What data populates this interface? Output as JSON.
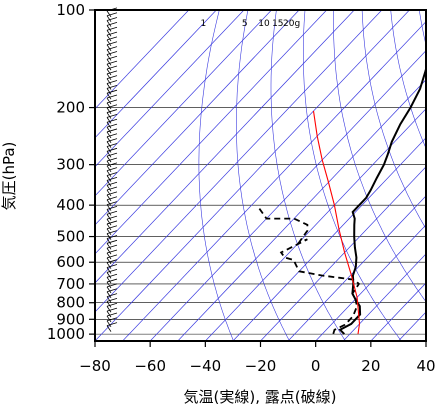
{
  "chart_data": {
    "type": "line",
    "title": "",
    "xlabel": "気温(実線), 露点(破線)",
    "ylabel": "気圧(hPa)",
    "xlim": [
      -80,
      40
    ],
    "ylim": [
      100,
      1050
    ],
    "y_scale": "log",
    "grid": true,
    "x_ticks": [
      -80,
      -60,
      -40,
      -20,
      0,
      20,
      40
    ],
    "x_tick_labels": [
      "−80",
      "−60",
      "−40",
      "−20",
      "0",
      "20",
      "40"
    ],
    "y_ticks": [
      100,
      200,
      300,
      400,
      500,
      600,
      700,
      800,
      900,
      1000
    ],
    "y_tick_labels": [
      "100",
      "200",
      "300",
      "400",
      "500",
      "600",
      "700",
      "800",
      "900",
      "1000"
    ],
    "mixing_ratio_labels": [
      "1",
      "5",
      "10",
      "15",
      "20g"
    ],
    "series": [
      {
        "role": "temperature",
        "style": "solid",
        "color": "#000000",
        "points": [
          [
            -57.5,
            100
          ],
          [
            -55.8,
            103
          ],
          [
            -54,
            108
          ],
          [
            -54.5,
            120
          ],
          [
            -56,
            123
          ],
          [
            -57,
            130
          ],
          [
            -56.5,
            140
          ],
          [
            -53,
            155
          ],
          [
            -49,
            175
          ],
          [
            -46,
            200
          ],
          [
            -44,
            225
          ],
          [
            -41,
            255
          ],
          [
            -38,
            280
          ],
          [
            -36,
            300
          ],
          [
            -34,
            330
          ],
          [
            -32,
            360
          ],
          [
            -31,
            380
          ],
          [
            -31,
            420
          ],
          [
            -28,
            440
          ],
          [
            -26,
            460
          ],
          [
            -22,
            500
          ],
          [
            -18,
            540
          ],
          [
            -14,
            580
          ],
          [
            -11,
            620
          ],
          [
            -9,
            660
          ],
          [
            -6,
            700
          ],
          [
            -3,
            750
          ],
          [
            0,
            780
          ],
          [
            4,
            820
          ],
          [
            7,
            870
          ],
          [
            7,
            930
          ],
          [
            5,
            970
          ],
          [
            8,
            1000
          ]
        ]
      },
      {
        "role": "dewpoint",
        "style": "dashed",
        "color": "#000000",
        "points": [
          [
            -66,
            410
          ],
          [
            -60,
            440
          ],
          [
            -50,
            440
          ],
          [
            -43,
            460
          ],
          [
            -41,
            480
          ],
          [
            -40,
            520
          ],
          [
            -38,
            510
          ],
          [
            -43,
            560
          ],
          [
            -40,
            580
          ],
          [
            -36,
            590
          ],
          [
            -30,
            640
          ],
          [
            -20,
            660
          ],
          [
            -13,
            670
          ],
          [
            -7,
            680
          ],
          [
            -4,
            700
          ],
          [
            -3,
            750
          ],
          [
            0,
            780
          ],
          [
            3,
            820
          ],
          [
            5,
            880
          ],
          [
            5,
            935
          ],
          [
            3,
            970
          ],
          [
            4,
            1000
          ]
        ]
      },
      {
        "role": "parcel",
        "style": "solid",
        "color": "#ff0000",
        "points": [
          [
            -80,
            205
          ],
          [
            -70,
            245
          ],
          [
            -60,
            290
          ],
          [
            -50,
            340
          ],
          [
            -40,
            400
          ],
          [
            -30,
            475
          ],
          [
            -20,
            560
          ],
          [
            -10,
            655
          ],
          [
            0,
            770
          ],
          [
            10,
            930
          ],
          [
            13,
            1000
          ]
        ]
      }
    ]
  }
}
